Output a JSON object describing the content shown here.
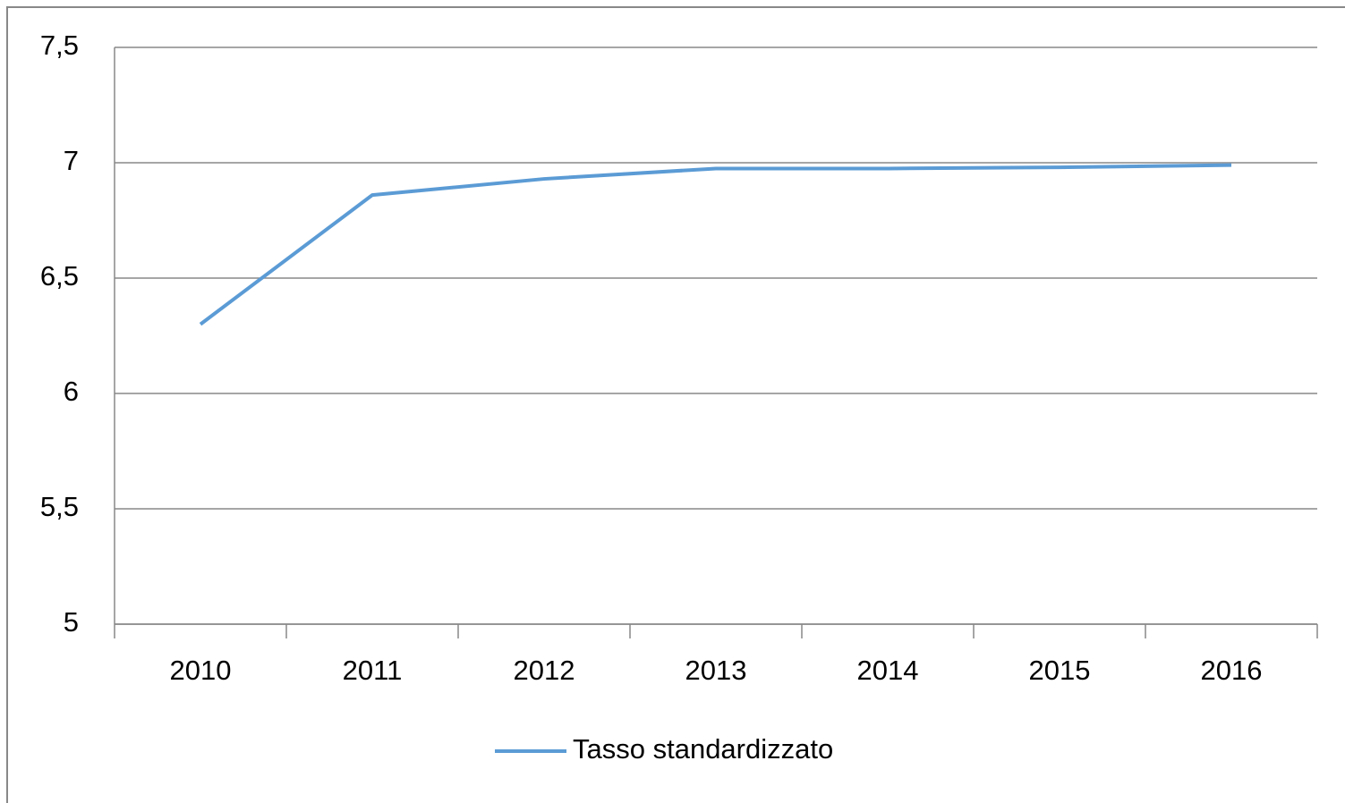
{
  "chart_data": {
    "type": "line",
    "categories": [
      "2010",
      "2011",
      "2012",
      "2013",
      "2014",
      "2015",
      "2016"
    ],
    "series": [
      {
        "name": "Tasso standardizzato",
        "color": "#5b9bd5",
        "values": [
          6.3,
          6.86,
          6.93,
          6.975,
          6.975,
          6.98,
          6.99
        ]
      }
    ],
    "ylim": [
      5,
      7.5
    ],
    "yticks": [
      5,
      {
        "value": 5.5,
        "label": "5,5"
      },
      6,
      {
        "value": 6.5,
        "label": "6,5"
      },
      7,
      {
        "value": 7.5,
        "label": "7,5"
      }
    ],
    "grid": true,
    "legend": "bottom"
  }
}
